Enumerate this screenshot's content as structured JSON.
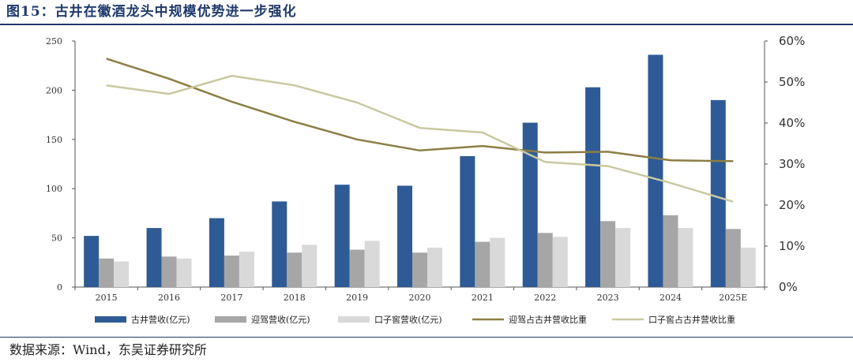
{
  "header": {
    "title": "图15：古井在徽酒龙头中规模优势进一步强化"
  },
  "footer": {
    "source": "数据来源：Wind，东吴证券研究所"
  },
  "colors": {
    "gujing_bar": "#2e5b95",
    "yingjia_bar": "#a6a6a6",
    "kouzijiao_bar": "#d9d9d9",
    "yingjia_share_line": "#8c7e45",
    "kouzijiao_share_line": "#c9c8a1",
    "title": "#1f3a6b"
  },
  "chart_data": {
    "type": "bar",
    "categories": [
      "2015",
      "2016",
      "2017",
      "2018",
      "2019",
      "2020",
      "2021",
      "2022",
      "2023",
      "2024",
      "2025E"
    ],
    "ylim": [
      0,
      250
    ],
    "yticks": [
      "0",
      "50",
      "100",
      "150",
      "200",
      "250"
    ],
    "y2lim": [
      0,
      0.6
    ],
    "y2ticks": [
      "0%",
      "10%",
      "20%",
      "30%",
      "40%",
      "50%",
      "60%"
    ],
    "series": [
      {
        "name": "古井营收(亿元)",
        "type": "bar",
        "values": [
          52,
          60,
          70,
          87,
          104,
          103,
          133,
          167,
          203,
          236,
          190
        ]
      },
      {
        "name": "迎驾营收(亿元)",
        "type": "bar",
        "values": [
          29,
          31,
          32,
          35,
          38,
          35,
          46,
          55,
          67,
          73,
          59
        ]
      },
      {
        "name": "口子窖营收(亿元)",
        "type": "bar",
        "values": [
          26,
          29,
          36,
          43,
          47,
          40,
          50,
          51,
          60,
          60,
          40
        ]
      },
      {
        "name": "迎驾占古井营收比重",
        "type": "line",
        "axis": "right",
        "values": [
          0.557,
          0.508,
          0.452,
          0.403,
          0.36,
          0.333,
          0.344,
          0.328,
          0.33,
          0.309,
          0.307
        ]
      },
      {
        "name": "口子窖占古井营收比重",
        "type": "line",
        "axis": "right",
        "values": [
          0.492,
          0.471,
          0.515,
          0.492,
          0.45,
          0.388,
          0.377,
          0.305,
          0.295,
          0.254,
          0.208
        ]
      }
    ]
  }
}
